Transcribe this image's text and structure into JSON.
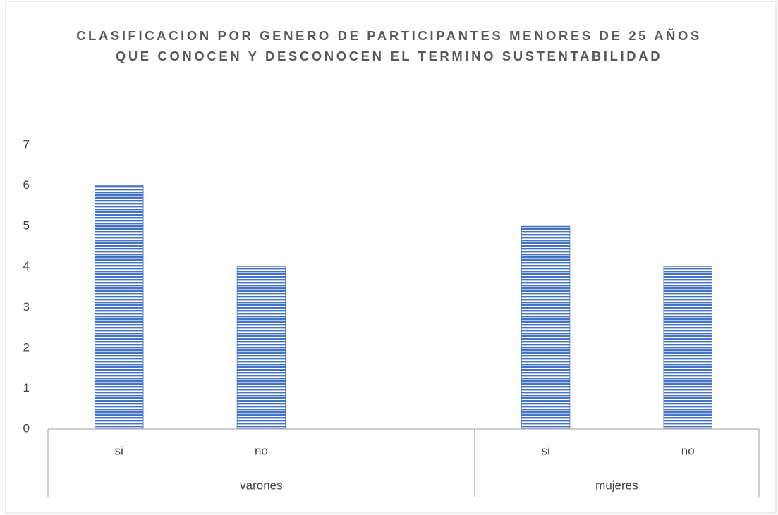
{
  "chart_data": {
    "type": "bar",
    "title": "CLASIFICACION POR GENERO DE PARTICIPANTES MENORES DE 25 AÑOS QUE CONOCEN Y DESCONOCEN EL TERMINO SUSTENTABILIDAD",
    "categories": [
      "si",
      "no",
      null,
      "si",
      "no"
    ],
    "groups": [
      {
        "name": "varones",
        "count": 3
      },
      {
        "name": "mujeres",
        "count": 2
      }
    ],
    "values": [
      6,
      4,
      null,
      5,
      4
    ],
    "color": "#4472c4",
    "ylim": [
      0,
      7
    ],
    "yticks": [
      0,
      1,
      2,
      3,
      4,
      5,
      6,
      7
    ],
    "grid": false
  }
}
